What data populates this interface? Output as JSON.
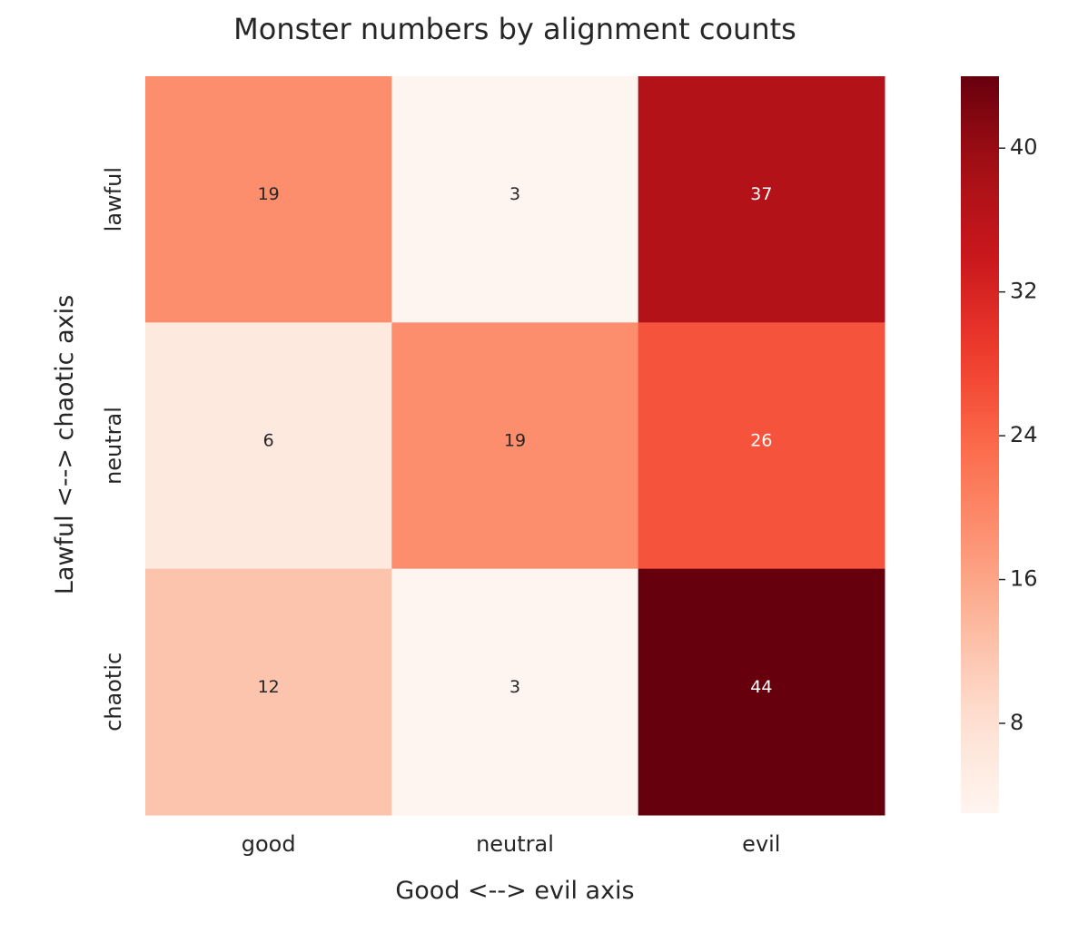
{
  "chart_data": {
    "type": "heatmap",
    "title": "Monster numbers by alignment counts",
    "xlabel": "Good <--> evil axis",
    "ylabel": "Lawful <--> chaotic axis",
    "x_categories": [
      "good",
      "neutral",
      "evil"
    ],
    "y_categories": [
      "lawful",
      "neutral",
      "chaotic"
    ],
    "values": [
      [
        19,
        3,
        37
      ],
      [
        6,
        19,
        26
      ],
      [
        12,
        3,
        44
      ]
    ],
    "colormap": "Reds",
    "value_range": [
      3,
      44
    ],
    "colorbar_ticks": [
      8,
      16,
      24,
      32,
      40
    ],
    "annotations": true,
    "grid": false
  }
}
